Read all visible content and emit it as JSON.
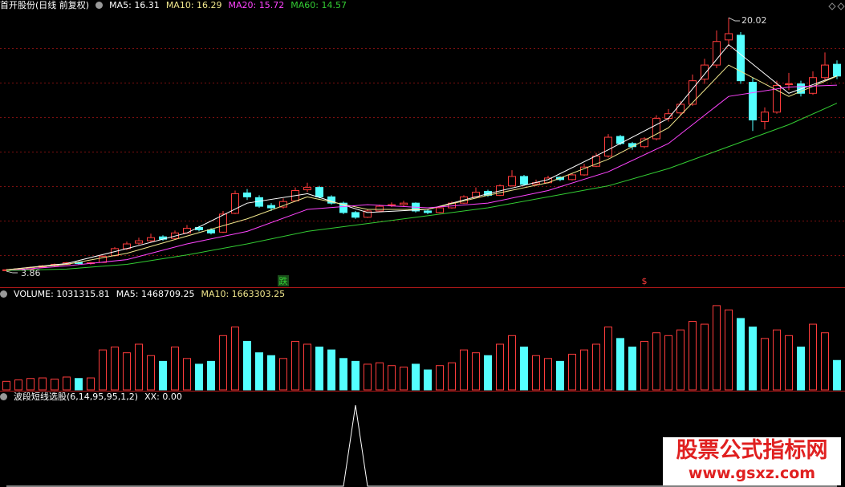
{
  "chart_data": {
    "type": "candlestick",
    "title": "首开股份(日线 前复权)",
    "ylim": [
      2.84,
      20.43
    ],
    "up_color": "#ff3c3c",
    "down_color": "#54ffff",
    "ohlc": [
      [
        3.9,
        4.0,
        3.86,
        3.95
      ],
      [
        3.95,
        4.05,
        3.92,
        4.0
      ],
      [
        4.0,
        4.15,
        3.97,
        4.1
      ],
      [
        4.12,
        4.25,
        4.08,
        4.2
      ],
      [
        4.22,
        4.35,
        4.15,
        4.3
      ],
      [
        4.3,
        4.45,
        4.25,
        4.4
      ],
      [
        4.42,
        4.48,
        4.3,
        4.35
      ],
      [
        4.35,
        4.45,
        4.28,
        4.4
      ],
      [
        4.42,
        4.9,
        4.4,
        4.8
      ],
      [
        4.85,
        5.4,
        4.8,
        5.3
      ],
      [
        5.3,
        5.75,
        5.2,
        5.6
      ],
      [
        5.65,
        6.0,
        5.55,
        5.8
      ],
      [
        5.8,
        6.25,
        5.7,
        6.0
      ],
      [
        6.05,
        6.15,
        5.8,
        5.9
      ],
      [
        5.95,
        6.45,
        5.9,
        6.3
      ],
      [
        6.3,
        6.8,
        6.25,
        6.6
      ],
      [
        6.65,
        6.75,
        6.4,
        6.5
      ],
      [
        6.5,
        6.6,
        6.2,
        6.3
      ],
      [
        6.35,
        7.7,
        6.3,
        7.5
      ],
      [
        7.55,
        9.0,
        7.5,
        8.8
      ],
      [
        8.85,
        9.1,
        8.4,
        8.6
      ],
      [
        8.55,
        8.7,
        7.9,
        8.0
      ],
      [
        8.05,
        8.2,
        7.7,
        7.9
      ],
      [
        7.95,
        8.5,
        7.85,
        8.3
      ],
      [
        8.35,
        9.2,
        8.3,
        9.0
      ],
      [
        9.05,
        9.5,
        8.9,
        9.2
      ],
      [
        9.2,
        9.3,
        8.5,
        8.6
      ],
      [
        8.6,
        8.7,
        8.1,
        8.2
      ],
      [
        8.2,
        8.3,
        7.5,
        7.6
      ],
      [
        7.6,
        7.7,
        7.2,
        7.3
      ],
      [
        7.3,
        7.8,
        7.25,
        7.7
      ],
      [
        7.7,
        8.1,
        7.65,
        8.0
      ],
      [
        8.05,
        8.25,
        7.95,
        8.1
      ],
      [
        8.1,
        8.35,
        8.0,
        8.2
      ],
      [
        8.2,
        8.25,
        7.6,
        7.7
      ],
      [
        7.7,
        7.8,
        7.5,
        7.6
      ],
      [
        7.6,
        8.0,
        7.55,
        7.9
      ],
      [
        7.9,
        8.3,
        7.85,
        8.2
      ],
      [
        8.2,
        8.7,
        8.15,
        8.6
      ],
      [
        8.6,
        9.2,
        8.55,
        8.9
      ],
      [
        8.95,
        9.05,
        8.6,
        8.7
      ],
      [
        8.7,
        9.4,
        8.65,
        9.3
      ],
      [
        9.3,
        10.3,
        9.25,
        9.9
      ],
      [
        9.9,
        10.0,
        9.3,
        9.4
      ],
      [
        9.4,
        9.7,
        9.3,
        9.5
      ],
      [
        9.5,
        9.95,
        9.45,
        9.8
      ],
      [
        9.85,
        9.9,
        9.6,
        9.7
      ],
      [
        9.7,
        10.1,
        9.65,
        10.0
      ],
      [
        10.0,
        10.7,
        9.95,
        10.5
      ],
      [
        10.55,
        11.4,
        10.5,
        11.2
      ],
      [
        11.2,
        12.6,
        11.1,
        12.4
      ],
      [
        12.45,
        12.55,
        11.9,
        12.0
      ],
      [
        12.0,
        12.1,
        11.6,
        11.8
      ],
      [
        11.8,
        12.4,
        11.7,
        12.3
      ],
      [
        12.3,
        13.8,
        12.2,
        13.6
      ],
      [
        13.6,
        14.2,
        13.4,
        13.9
      ],
      [
        13.95,
        14.7,
        13.8,
        14.5
      ],
      [
        14.5,
        16.4,
        14.4,
        16.0
      ],
      [
        16.1,
        17.4,
        15.8,
        17.0
      ],
      [
        17.0,
        19.2,
        16.8,
        18.5
      ],
      [
        18.6,
        20.02,
        18.2,
        19.0
      ],
      [
        18.9,
        19.1,
        15.8,
        16.0
      ],
      [
        15.9,
        16.2,
        12.8,
        13.5
      ],
      [
        13.4,
        14.3,
        12.9,
        14.0
      ],
      [
        14.0,
        16.0,
        13.9,
        15.7
      ],
      [
        15.75,
        16.5,
        15.4,
        15.8
      ],
      [
        15.8,
        16.0,
        15.0,
        15.2
      ],
      [
        15.2,
        16.6,
        15.1,
        16.2
      ],
      [
        16.2,
        17.8,
        16.0,
        17.0
      ],
      [
        17.05,
        17.3,
        16.1,
        16.3
      ]
    ],
    "series": [
      {
        "name": "MA5",
        "color": "#ffffff",
        "last": 16.31,
        "x": [
          0,
          5,
          10,
          15,
          20,
          25,
          30,
          35,
          40,
          45,
          50,
          55,
          60,
          65,
          69
        ],
        "values": [
          3.95,
          4.35,
          5.3,
          6.3,
          8.2,
          8.8,
          7.6,
          7.8,
          8.8,
          9.7,
          11.6,
          13.6,
          18.3,
          15.2,
          16.31
        ]
      },
      {
        "name": "MA10",
        "color": "#f0e68c",
        "last": 16.29,
        "x": [
          0,
          5,
          10,
          15,
          20,
          25,
          30,
          35,
          40,
          45,
          50,
          55,
          60,
          65,
          69
        ],
        "values": [
          3.95,
          4.3,
          5.0,
          6.1,
          7.2,
          8.6,
          7.8,
          7.8,
          8.7,
          9.5,
          11.0,
          13.0,
          17.0,
          15.0,
          16.29
        ]
      },
      {
        "name": "MA20",
        "color": "#ff44ff",
        "last": 15.72,
        "x": [
          0,
          5,
          10,
          15,
          20,
          25,
          30,
          35,
          40,
          45,
          50,
          55,
          60,
          65,
          69
        ],
        "values": [
          3.9,
          4.2,
          4.6,
          5.6,
          6.4,
          7.8,
          8.1,
          7.9,
          8.2,
          9.0,
          10.2,
          12.0,
          15.0,
          15.6,
          15.72
        ]
      },
      {
        "name": "MA60",
        "color": "#33cc33",
        "last": 14.57,
        "x": [
          0,
          5,
          10,
          15,
          20,
          25,
          30,
          35,
          40,
          45,
          50,
          55,
          60,
          65,
          69
        ],
        "values": [
          3.9,
          4.0,
          4.3,
          4.9,
          5.6,
          6.4,
          6.9,
          7.4,
          7.9,
          8.6,
          9.3,
          10.4,
          11.8,
          13.2,
          14.57
        ]
      }
    ],
    "max_label": 20.02,
    "min_label": 3.86,
    "annotations": [
      {
        "text": "跌",
        "index": 23,
        "color": "#33cc33"
      },
      {
        "text": "$",
        "index": 53,
        "color": "#ff3c3c"
      }
    ],
    "volume": {
      "title": "VOLUME",
      "last": 1031315.81,
      "ylim": [
        0,
        3200000
      ],
      "values": [
        300000,
        350000,
        400000,
        420000,
        380000,
        450000,
        400000,
        420000,
        1400000,
        1500000,
        1300000,
        1600000,
        1200000,
        1000000,
        1500000,
        1100000,
        900000,
        1000000,
        1900000,
        2200000,
        1700000,
        1300000,
        1200000,
        1100000,
        1700000,
        1600000,
        1500000,
        1400000,
        1100000,
        1000000,
        900000,
        950000,
        850000,
        800000,
        900000,
        700000,
        850000,
        950000,
        1400000,
        1300000,
        1200000,
        1600000,
        1900000,
        1500000,
        1200000,
        1100000,
        1000000,
        1250000,
        1400000,
        1600000,
        2200000,
        1800000,
        1500000,
        1700000,
        2000000,
        1900000,
        2100000,
        2400000,
        2300000,
        2950000,
        2800000,
        2500000,
        2200000,
        1800000,
        2100000,
        1900000,
        1500000,
        2300000,
        2000000,
        1031315.81
      ],
      "ma": [
        {
          "name": "MA5",
          "color": "#ffffff",
          "last": 1468709.25
        },
        {
          "name": "MA10",
          "color": "#f0e68c",
          "last": 1663303.25
        }
      ]
    },
    "indicator": {
      "title": "波段短线选股(6,14,95,95,1,2)",
      "name": "XX",
      "last": 0,
      "last_label": "0.00",
      "color": "#ffffff",
      "ylim": [
        0,
        1.05
      ],
      "values": [
        0,
        0,
        0,
        0,
        0,
        0,
        0,
        0,
        0,
        0,
        0,
        0,
        0,
        0,
        0,
        0,
        0,
        0,
        0,
        0,
        0,
        0,
        0,
        0,
        0,
        0,
        0,
        0,
        0,
        1,
        0,
        0,
        0,
        0,
        0,
        0,
        0,
        0,
        0,
        0,
        0,
        0,
        0,
        0,
        0,
        0,
        0,
        0,
        0,
        0,
        0,
        0,
        0,
        0,
        0,
        0,
        0,
        0,
        0,
        0,
        0,
        0,
        0,
        0,
        0,
        0,
        0,
        0,
        0,
        0
      ]
    }
  },
  "watermark": {
    "title": "股票公式指标网",
    "url": "www.gsxz.com"
  }
}
